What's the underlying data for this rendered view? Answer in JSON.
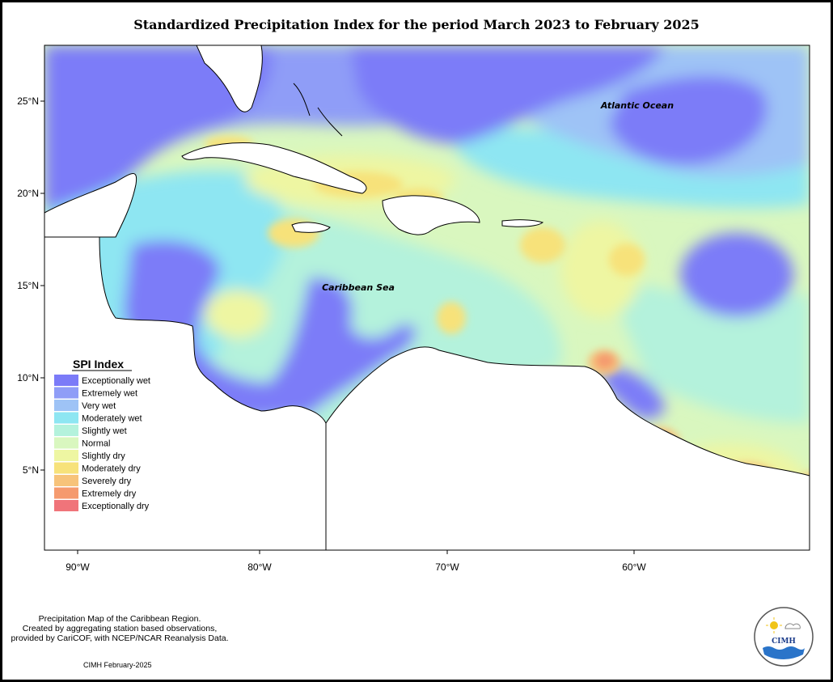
{
  "title": "Standardized Precipitation Index for the period March 2023 to February 2025",
  "map": {
    "ocean_labels": [
      "Atlantic Ocean",
      "Caribbean Sea"
    ],
    "lat_ticks": [
      "25°N",
      "20°N",
      "15°N",
      "10°N",
      "5°N"
    ],
    "lon_ticks": [
      "90°W",
      "80°W",
      "70°W",
      "60°W"
    ],
    "extent": {
      "lon": [
        -92,
        -50
      ],
      "lat": [
        1.2,
        28
      ]
    }
  },
  "legend": {
    "title": "SPI Index",
    "items": [
      {
        "label": "Exceptionally wet",
        "color": "#7b7bf8"
      },
      {
        "label": "Extremely wet",
        "color": "#8f9df7"
      },
      {
        "label": "Very wet",
        "color": "#9ec3f6"
      },
      {
        "label": "Moderately wet",
        "color": "#8ee6f2"
      },
      {
        "label": "Slightly wet",
        "color": "#b4f2dc"
      },
      {
        "label": "Normal",
        "color": "#d9f7bf"
      },
      {
        "label": "Slightly dry",
        "color": "#eef6a2"
      },
      {
        "label": "Moderately dry",
        "color": "#f7e27a"
      },
      {
        "label": "Severely dry",
        "color": "#f7c37a"
      },
      {
        "label": "Extremely dry",
        "color": "#f59a6e"
      },
      {
        "label": "Exceptionally dry",
        "color": "#f0747a"
      }
    ]
  },
  "footer": {
    "credit_lines": [
      "Precipitation Map of the Caribbean Region.",
      "Created by aggregating station based observations,",
      "provided by CariCOF, with NCEP/NCAR Reanalysis Data."
    ],
    "stamp": "CIMH February-2025",
    "logo_text": "CIMH"
  }
}
